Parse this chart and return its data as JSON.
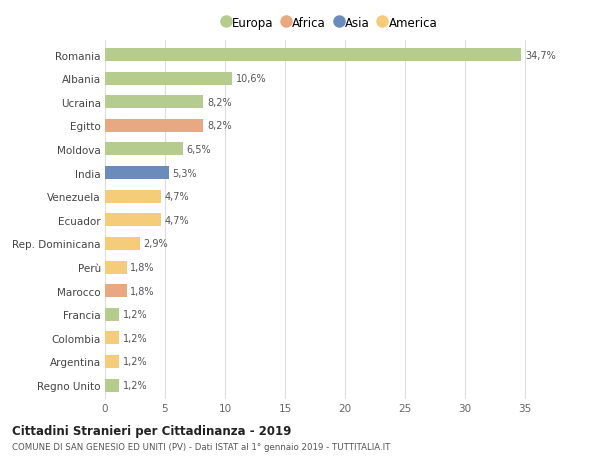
{
  "countries": [
    "Romania",
    "Albania",
    "Ucraina",
    "Egitto",
    "Moldova",
    "India",
    "Venezuela",
    "Ecuador",
    "Rep. Dominicana",
    "Perù",
    "Marocco",
    "Francia",
    "Colombia",
    "Argentina",
    "Regno Unito"
  ],
  "values": [
    34.7,
    10.6,
    8.2,
    8.2,
    6.5,
    5.3,
    4.7,
    4.7,
    2.9,
    1.8,
    1.8,
    1.2,
    1.2,
    1.2,
    1.2
  ],
  "labels": [
    "34,7%",
    "10,6%",
    "8,2%",
    "8,2%",
    "6,5%",
    "5,3%",
    "4,7%",
    "4,7%",
    "2,9%",
    "1,8%",
    "1,8%",
    "1,2%",
    "1,2%",
    "1,2%",
    "1,2%"
  ],
  "continents": [
    "Europa",
    "Europa",
    "Europa",
    "Africa",
    "Europa",
    "Asia",
    "America",
    "America",
    "America",
    "America",
    "Africa",
    "Europa",
    "America",
    "America",
    "Europa"
  ],
  "continent_colors": {
    "Europa": "#b5cc8e",
    "Africa": "#e8a882",
    "Asia": "#6b8cba",
    "America": "#f5cc7a"
  },
  "legend_order": [
    "Europa",
    "Africa",
    "Asia",
    "America"
  ],
  "title1": "Cittadini Stranieri per Cittadinanza - 2019",
  "title2": "COMUNE DI SAN GENESIO ED UNITI (PV) - Dati ISTAT al 1° gennaio 2019 - TUTTITALIA.IT",
  "xlim": [
    0,
    37.5
  ],
  "xticks": [
    0,
    5,
    10,
    15,
    20,
    25,
    30,
    35
  ],
  "bg_color": "#ffffff",
  "grid_color": "#dddddd"
}
